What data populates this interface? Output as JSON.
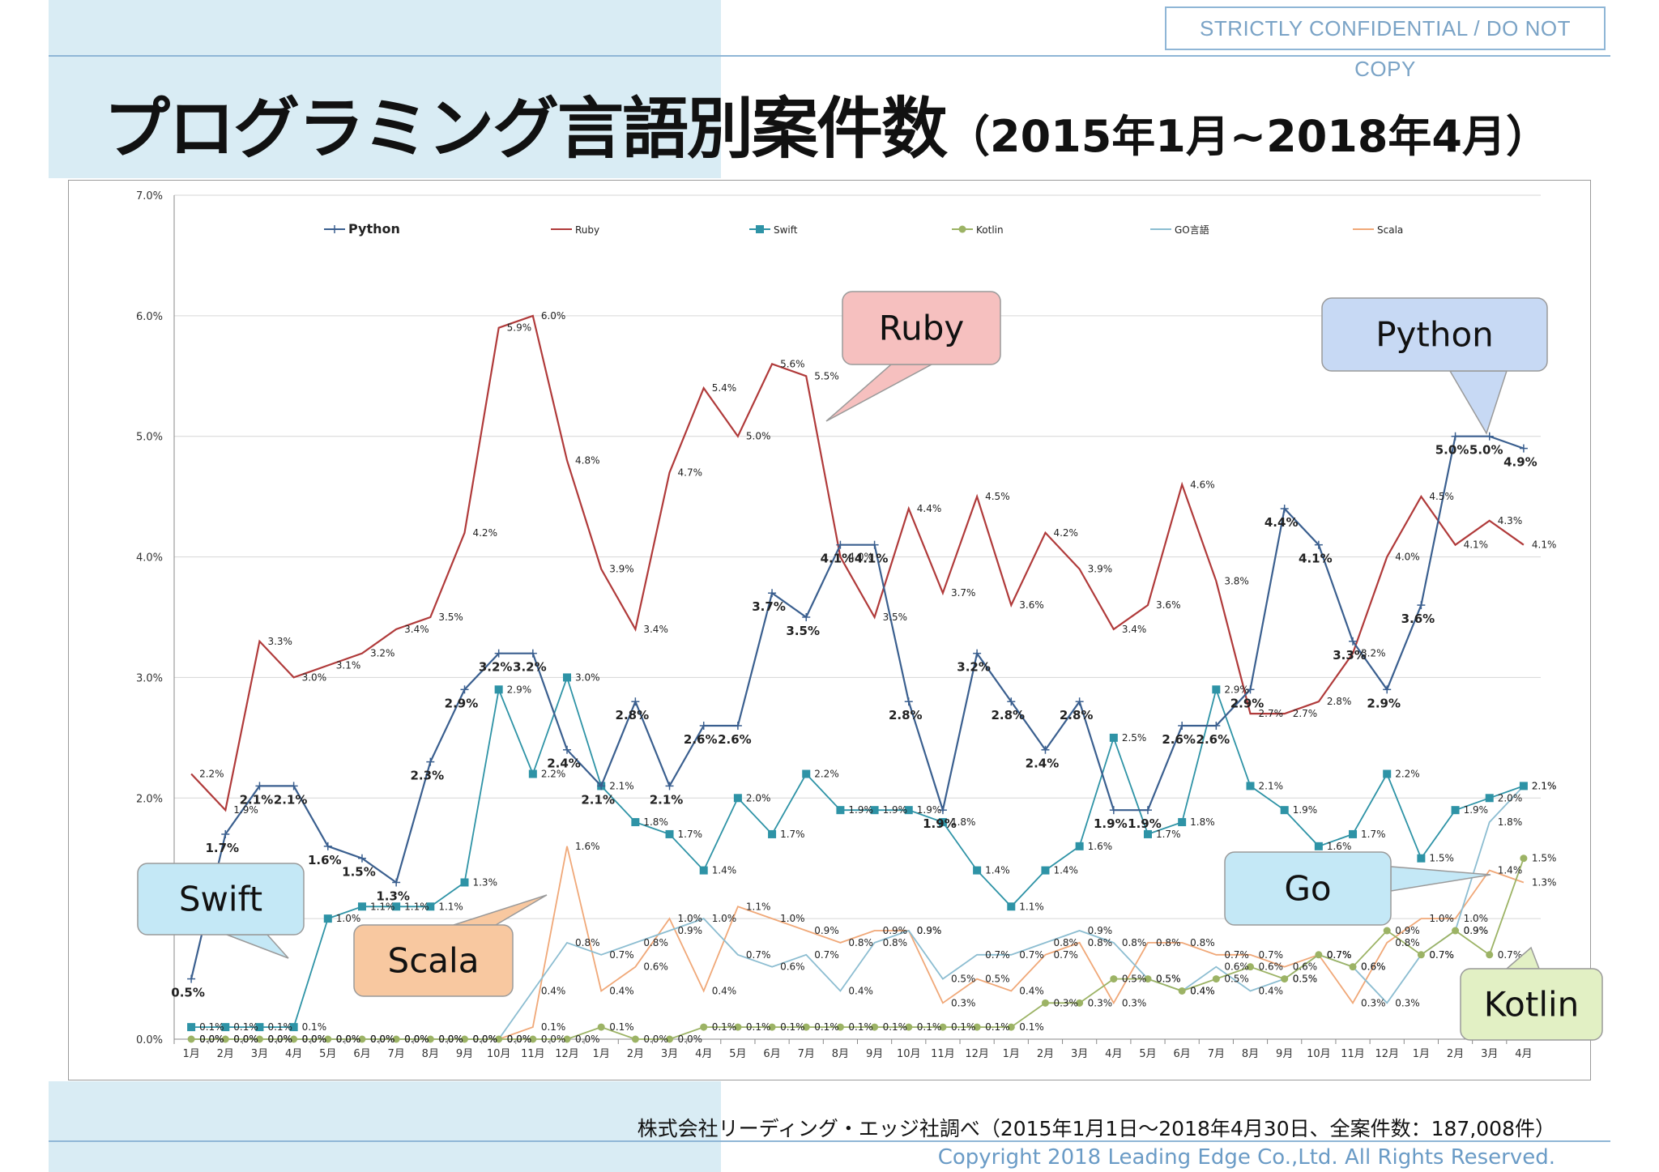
{
  "header": {
    "confidential": "STRICTLY CONFIDENTIAL  /  DO NOT COPY",
    "title": "プログラミング言語別案件数",
    "subtitle": "（2015年1月~2018年4月）"
  },
  "footer": {
    "source": "株式会社リーディング・エッジ社調べ（2015年1月1日～2018年4月30日、全案件数：187,008件）",
    "copyright": "Copyright 2018 Leading Edge Co.,Ltd. All Rights Reserved."
  },
  "callouts": [
    {
      "label": "Ruby",
      "color": "#f6c0bf"
    },
    {
      "label": "Python",
      "color": "#c7d9f4"
    },
    {
      "label": "Swift",
      "color": "#c4e8f6"
    },
    {
      "label": "Scala",
      "color": "#f8c8a0"
    },
    {
      "label": "Go",
      "color": "#c4e8f6"
    },
    {
      "label": "Kotlin",
      "color": "#e2f0c4"
    }
  ],
  "chart_data": {
    "type": "line",
    "x": [
      "1月",
      "2月",
      "3月",
      "4月",
      "5月",
      "6月",
      "7月",
      "8月",
      "9月",
      "10月",
      "11月",
      "12月",
      "1月",
      "2月",
      "3月",
      "4月",
      "5月",
      "6月",
      "7月",
      "8月",
      "9月",
      "10月",
      "11月",
      "12月",
      "1月",
      "2月",
      "3月",
      "4月",
      "5月",
      "6月",
      "7月",
      "8月",
      "9月",
      "10月",
      "11月",
      "12月",
      "1月",
      "2月",
      "3月",
      "4月"
    ],
    "ylim": [
      0,
      7
    ],
    "yticks": [
      "0.0%",
      "1.0%",
      "2.0%",
      "3.0%",
      "4.0%",
      "5.0%",
      "6.0%",
      "7.0%"
    ],
    "grid": true,
    "legend_position": "top",
    "series": [
      {
        "name": "Python",
        "color": "#3a5f8f",
        "marker": "plus",
        "bold_labels": true,
        "values": [
          0.5,
          1.7,
          2.1,
          2.1,
          1.6,
          1.5,
          1.3,
          2.3,
          2.9,
          3.2,
          3.2,
          2.4,
          2.1,
          2.8,
          2.1,
          2.6,
          2.6,
          3.7,
          3.5,
          4.1,
          4.1,
          2.8,
          1.9,
          3.2,
          2.8,
          2.4,
          2.8,
          1.9,
          1.9,
          2.6,
          2.6,
          2.9,
          4.4,
          4.1,
          3.3,
          2.9,
          3.6,
          5.0,
          5.0,
          4.9
        ]
      },
      {
        "name": "Ruby",
        "color": "#b03a3a",
        "marker": "none",
        "bold_labels": false,
        "values": [
          2.2,
          1.9,
          3.3,
          3.0,
          3.1,
          3.2,
          3.4,
          3.5,
          4.2,
          5.9,
          6.0,
          4.8,
          3.9,
          3.4,
          4.7,
          5.4,
          5.0,
          5.6,
          5.5,
          4.0,
          3.5,
          4.4,
          3.7,
          4.5,
          3.6,
          4.2,
          3.9,
          3.4,
          3.6,
          4.6,
          3.8,
          2.7,
          2.7,
          2.8,
          3.2,
          4.0,
          4.5,
          4.1,
          4.3,
          4.1
        ]
      },
      {
        "name": "Swift",
        "color": "#2e93a6",
        "marker": "square",
        "bold_labels": false,
        "values": [
          0.1,
          0.1,
          0.1,
          0.1,
          1.0,
          1.1,
          1.1,
          1.1,
          1.3,
          2.9,
          2.2,
          3.0,
          2.1,
          1.8,
          1.7,
          1.4,
          2.0,
          1.7,
          2.2,
          1.9,
          1.9,
          1.9,
          1.8,
          1.4,
          1.1,
          1.4,
          1.6,
          2.5,
          1.7,
          1.8,
          2.9,
          2.1,
          1.9,
          1.6,
          1.7,
          2.2,
          1.5,
          1.9,
          2.0,
          2.1
        ]
      },
      {
        "name": "Kotlin",
        "color": "#9cb365",
        "marker": "circle",
        "bold_labels": false,
        "values": [
          0.0,
          0.0,
          0.0,
          0.0,
          0.0,
          0.0,
          0.0,
          0.0,
          0.0,
          0.0,
          0.0,
          0.0,
          0.1,
          0.0,
          0.0,
          0.1,
          0.1,
          0.1,
          0.1,
          0.1,
          0.1,
          0.1,
          0.1,
          0.1,
          0.1,
          0.3,
          0.3,
          0.5,
          0.5,
          0.4,
          0.5,
          0.6,
          0.5,
          0.7,
          0.6,
          0.9,
          0.7,
          0.9,
          0.7,
          1.5
        ]
      },
      {
        "name": "GO言語",
        "color": "#8cbdd1",
        "marker": "none",
        "bold_labels": false,
        "values": [
          0.0,
          0.0,
          0.0,
          0.0,
          0.0,
          0.0,
          0.0,
          0.0,
          0.0,
          0.0,
          0.4,
          0.8,
          0.7,
          0.8,
          0.9,
          1.0,
          0.7,
          0.6,
          0.7,
          0.4,
          0.8,
          0.9,
          0.5,
          0.7,
          0.7,
          0.8,
          0.9,
          0.8,
          0.5,
          0.4,
          0.6,
          0.4,
          0.5,
          0.7,
          0.6,
          0.3,
          0.7,
          0.9,
          1.8,
          2.1
        ]
      },
      {
        "name": "Scala",
        "color": "#f0a878",
        "marker": "none",
        "bold_labels": false,
        "values": [
          0.0,
          0.0,
          0.0,
          0.0,
          0.0,
          0.0,
          0.0,
          0.0,
          0.0,
          0.0,
          0.1,
          1.6,
          0.4,
          0.6,
          1.0,
          0.4,
          1.1,
          1.0,
          0.9,
          0.8,
          0.9,
          0.9,
          0.3,
          0.5,
          0.4,
          0.7,
          0.8,
          0.3,
          0.8,
          0.8,
          0.7,
          0.7,
          0.6,
          0.7,
          0.3,
          0.8,
          1.0,
          1.0,
          1.4,
          1.3
        ]
      }
    ]
  }
}
